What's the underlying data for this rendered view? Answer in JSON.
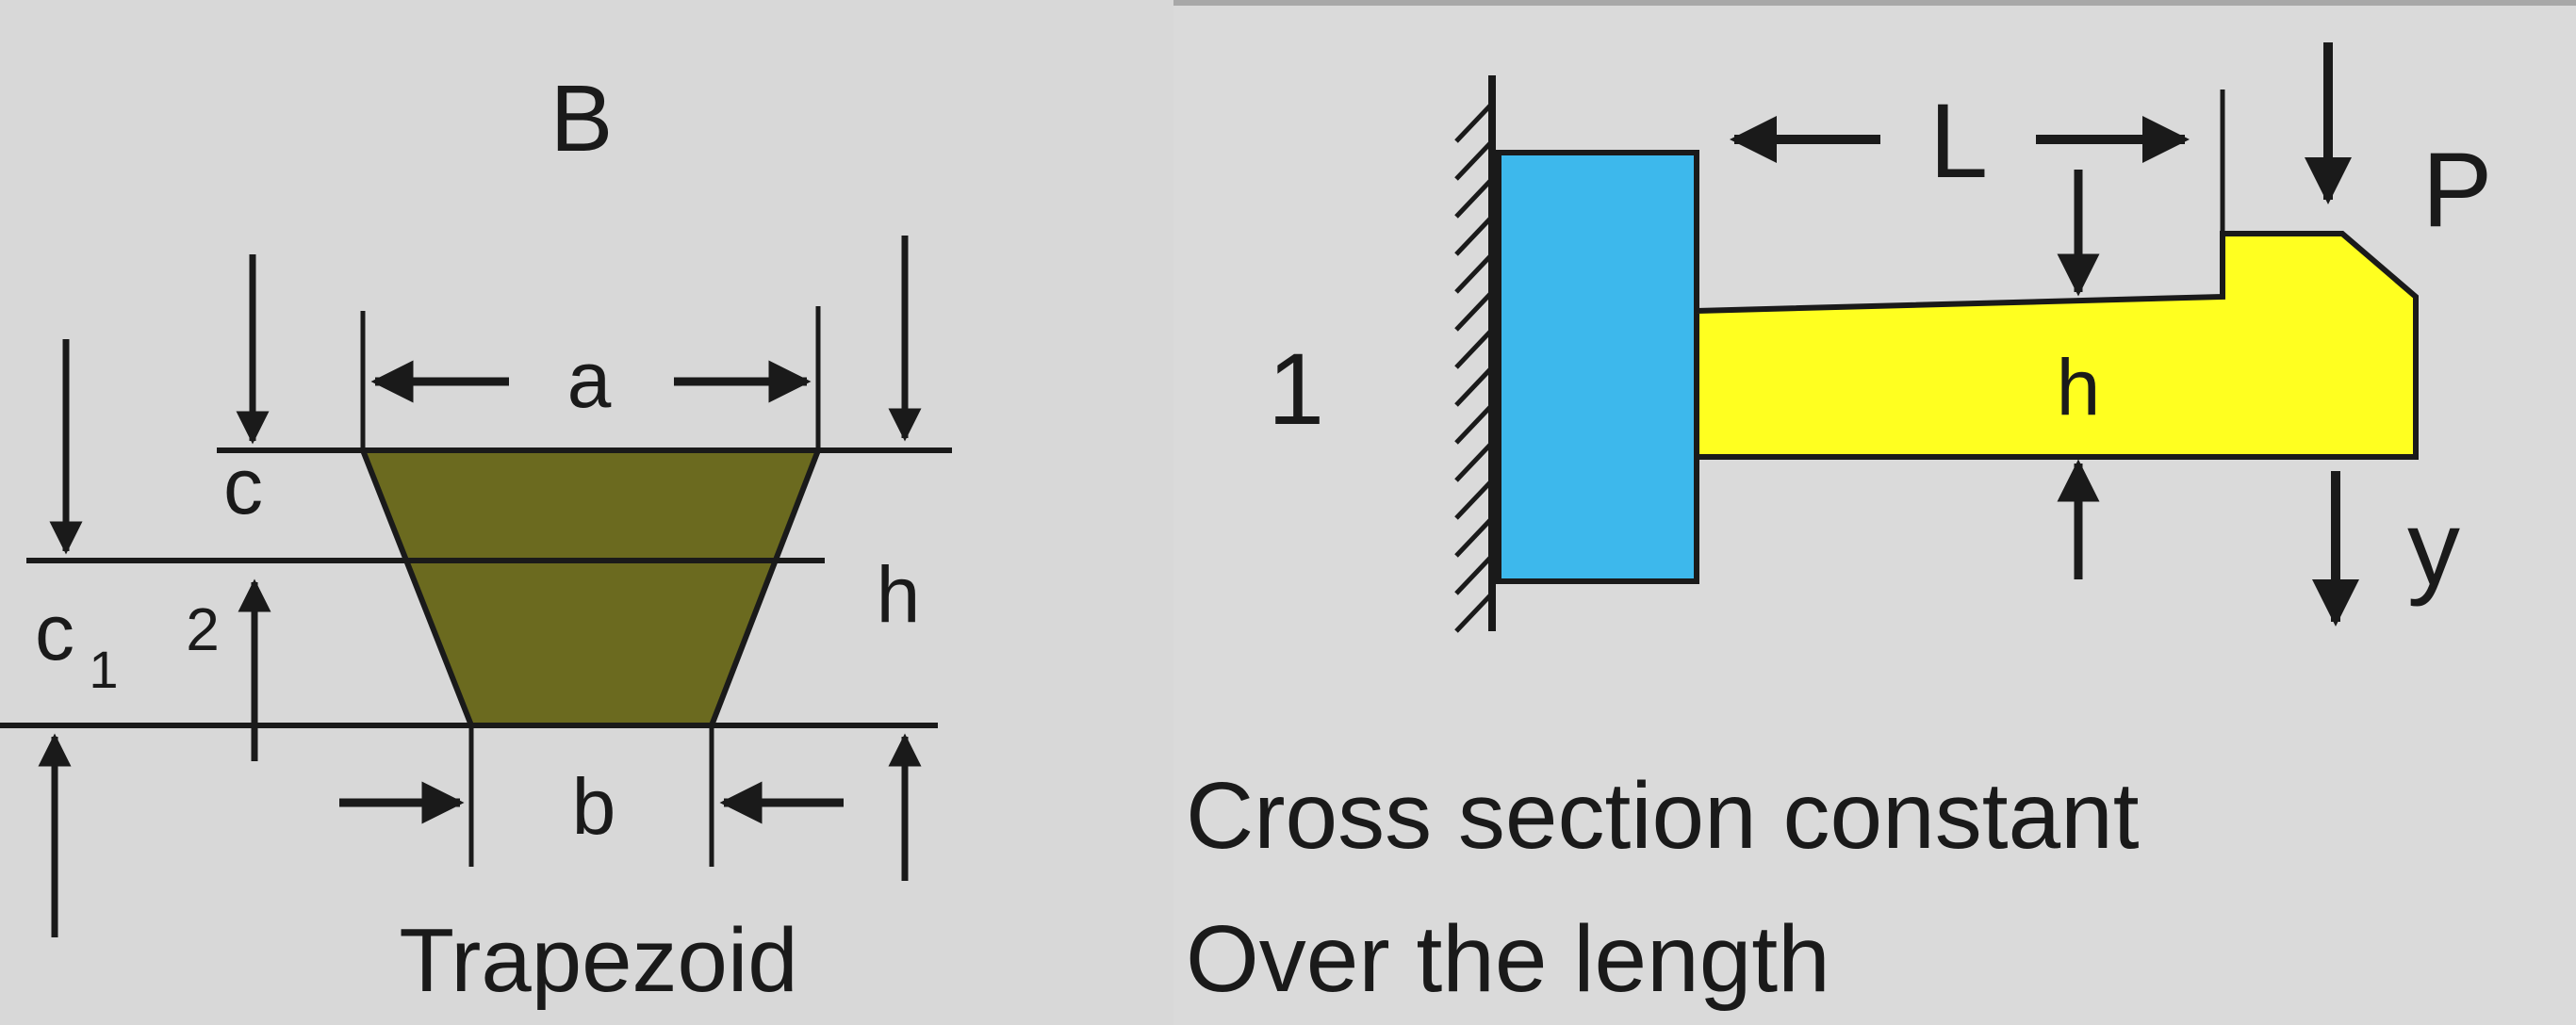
{
  "trapezoid_panel": {
    "title": "B",
    "labels": {
      "a": "a",
      "b": "b",
      "c": "c",
      "c1_main": "c",
      "c1_sub": "1",
      "two": "2",
      "h": "h"
    },
    "caption": "Trapezoid",
    "fill_color": "#6b6a1f"
  },
  "beam_panel": {
    "case_number": "1",
    "labels": {
      "L": "L",
      "P": "P",
      "h": "h",
      "y": "y"
    },
    "caption_line1": "Cross section constant",
    "caption_line2": "Over the length",
    "support_color": "#3db8ec",
    "beam_color": "#ffff20"
  },
  "colors": {
    "background": "#d8d8d8",
    "ink": "#1a1a1a"
  }
}
